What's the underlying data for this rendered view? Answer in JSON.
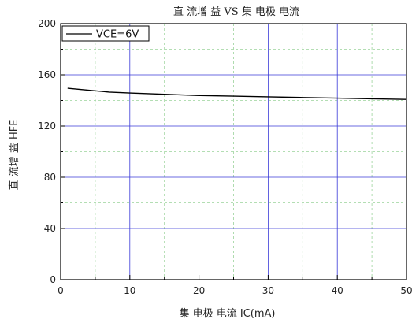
{
  "chart_data": {
    "type": "line",
    "title": "直 流增 益  VS 集 电极 电流",
    "xlabel": "集 电极 电流 IC(mA)",
    "ylabel": "直 流增 益  HFE",
    "xlim": [
      0,
      50
    ],
    "ylim": [
      0,
      200
    ],
    "xticks": [
      0,
      10,
      20,
      30,
      40,
      50
    ],
    "yticks": [
      0,
      40,
      80,
      120,
      160,
      200
    ],
    "grid": true,
    "legend": "top-left",
    "series": [
      {
        "name": "VCE=6V",
        "color": "#000000",
        "x": [
          1,
          3,
          5,
          7,
          10,
          15,
          20,
          25,
          30,
          35,
          40,
          45,
          50
        ],
        "y": [
          149.5,
          148.5,
          147.5,
          146.5,
          145.8,
          144.8,
          143.8,
          143.3,
          142.8,
          142.3,
          141.8,
          141.3,
          140.8
        ]
      }
    ],
    "colors": {
      "major_grid": "#3a3ad8",
      "minor_grid": "#9bd39b",
      "axis": "#000000"
    }
  }
}
